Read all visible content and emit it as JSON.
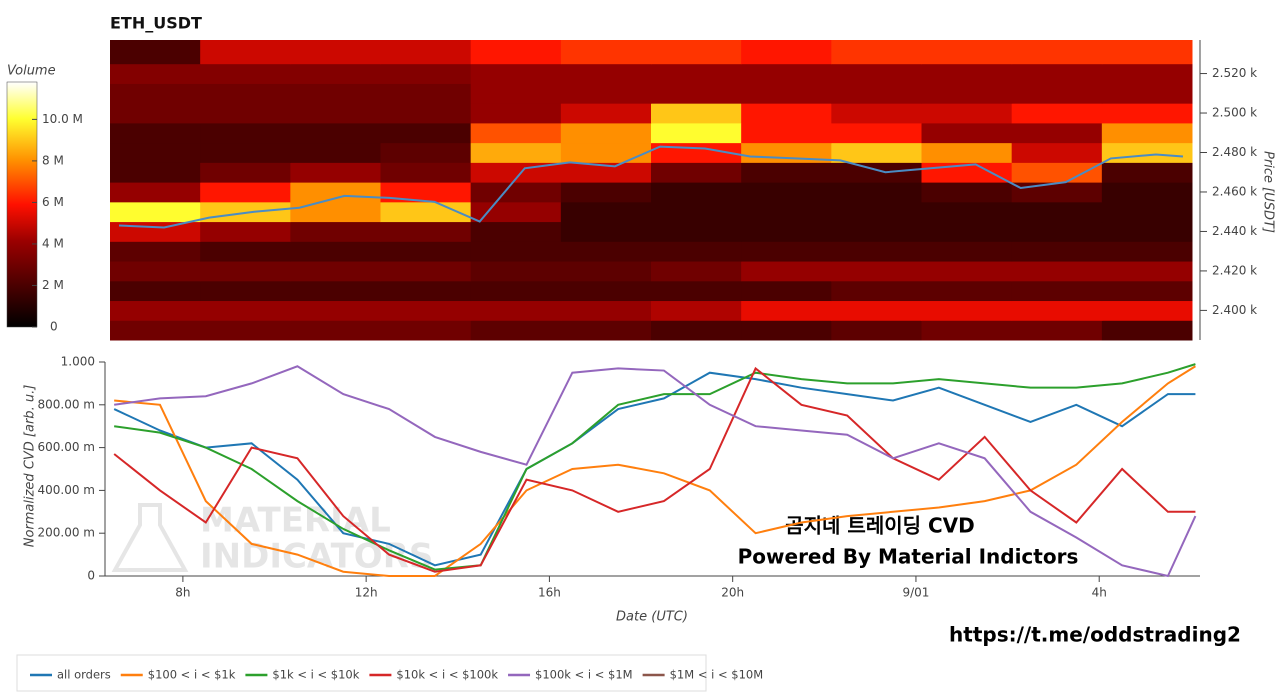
{
  "chart_data": [
    {
      "type": "heatmap",
      "title": "ETH_USDT",
      "colorbar_title": "Volume",
      "y_label": "Price [USDT]",
      "x_edges": [
        6.3,
        8.3,
        10.3,
        12.3,
        14.3,
        16.3,
        18.3,
        20.3,
        22.3,
        24.3,
        26.3,
        28.3,
        30.3
      ],
      "y_edges": [
        2385,
        2395,
        2405,
        2415,
        2425,
        2435,
        2445,
        2455,
        2465,
        2475,
        2485,
        2495,
        2505,
        2515,
        2525,
        2537
      ],
      "xlim": [
        6.3,
        30.3
      ],
      "ylim": [
        2385,
        2537
      ],
      "zlim": [
        0,
        11800000
      ],
      "z": [
        [
          3000000,
          3000000,
          3000000,
          3000000,
          2500000,
          2500000,
          2000000,
          2000000,
          2500000,
          3000000,
          3000000,
          2000000
        ],
        [
          4000000,
          4000000,
          4000000,
          4000000,
          4000000,
          4000000,
          4500000,
          5500000,
          5500000,
          5500000,
          5500000,
          5500000
        ],
        [
          2000000,
          2000000,
          2000000,
          2000000,
          2000000,
          2000000,
          2000000,
          2000000,
          2500000,
          2500000,
          2500000,
          2500000
        ],
        [
          3000000,
          3000000,
          3000000,
          3000000,
          2500000,
          2500000,
          3000000,
          4000000,
          4000000,
          4000000,
          4000000,
          4000000
        ],
        [
          2500000,
          2000000,
          2000000,
          2000000,
          2000000,
          2000000,
          2000000,
          2000000,
          2000000,
          2000000,
          2000000,
          2000000
        ],
        [
          5000000,
          4000000,
          3000000,
          3000000,
          2000000,
          1500000,
          1500000,
          1500000,
          1500000,
          1500000,
          1500000,
          1500000
        ],
        [
          10000000,
          9000000,
          8000000,
          9000000,
          4000000,
          1500000,
          1500000,
          1500000,
          1500000,
          1500000,
          1500000,
          1500000
        ],
        [
          4000000,
          6000000,
          8000000,
          6000000,
          3000000,
          2000000,
          1500000,
          1500000,
          1500000,
          2000000,
          2500000,
          1500000
        ],
        [
          2000000,
          3000000,
          4000000,
          3000000,
          5000000,
          5000000,
          3000000,
          2000000,
          2000000,
          6000000,
          7000000,
          2000000
        ],
        [
          2000000,
          2000000,
          2000000,
          2500000,
          8500000,
          8000000,
          6000000,
          8000000,
          9000000,
          8000000,
          5000000,
          9000000
        ],
        [
          2000000,
          2000000,
          2000000,
          2000000,
          7000000,
          8000000,
          10000000,
          6000000,
          6000000,
          4000000,
          4000000,
          8000000
        ],
        [
          3000000,
          3000000,
          3000000,
          3000000,
          4000000,
          5000000,
          9000000,
          6000000,
          5000000,
          5000000,
          6000000,
          6000000
        ],
        [
          3000000,
          3000000,
          3000000,
          3000000,
          4000000,
          4000000,
          4000000,
          4000000,
          4000000,
          4000000,
          4000000,
          4000000
        ],
        [
          3500000,
          3500000,
          3500000,
          3500000,
          4000000,
          4000000,
          4000000,
          4000000,
          4000000,
          4000000,
          4000000,
          4000000
        ],
        [
          2000000,
          5000000,
          5000000,
          5000000,
          6000000,
          6500000,
          6500000,
          6000000,
          6500000,
          6500000,
          6500000,
          6500000
        ]
      ],
      "ztick": [
        {
          "value": 0,
          "label": "0"
        },
        {
          "value": 2000000,
          "label": "2 M"
        },
        {
          "value": 4000000,
          "label": "4 M"
        },
        {
          "value": 6000000,
          "label": "6 M"
        },
        {
          "value": 8000000,
          "label": "8 M"
        },
        {
          "value": 10000000,
          "label": "10.0 M"
        }
      ],
      "yticks": [
        {
          "value": 2400,
          "label": "2.400 k"
        },
        {
          "value": 2420,
          "label": "2.420 k"
        },
        {
          "value": 2440,
          "label": "2.440 k"
        },
        {
          "value": 2460,
          "label": "2.460 k"
        },
        {
          "value": 2480,
          "label": "2.480 k"
        },
        {
          "value": 2500,
          "label": "2.500 k"
        },
        {
          "value": 2520,
          "label": "2.520 k"
        }
      ],
      "price": {
        "color": "#4a8cc4",
        "x": [
          6.5,
          7.5,
          8.5,
          9.5,
          10.5,
          11.5,
          12.5,
          13.5,
          14.5,
          15.5,
          16.5,
          17.5,
          18.5,
          19.5,
          20.5,
          21.5,
          22.5,
          23.5,
          24.5,
          25.5,
          26.5,
          27.5,
          28.5,
          29.5,
          30.1
        ],
        "values": [
          2443,
          2442,
          2447,
          2450,
          2452,
          2458,
          2457,
          2455,
          2445,
          2472,
          2475,
          2473,
          2483,
          2482,
          2478,
          2477,
          2476,
          2470,
          2472,
          2474,
          2462,
          2465,
          2477,
          2479,
          2478
        ]
      }
    },
    {
      "type": "line",
      "y_label": "Normalized CVD [arb. u.]",
      "x_label": "Date (UTC)",
      "annotations": [
        "곰지네 트레이딩 CVD",
        "Powered By Material Indictors"
      ],
      "x": [
        6.5,
        7.5,
        8.5,
        9.5,
        10.5,
        11.5,
        12.5,
        13.5,
        14.5,
        15.5,
        16.5,
        17.5,
        18.5,
        19.5,
        20.5,
        21.5,
        22.5,
        23.5,
        24.5,
        25.5,
        26.5,
        27.5,
        28.5,
        29.5,
        30.1
      ],
      "xlim": [
        6.3,
        30.2
      ],
      "ylim": [
        0,
        1
      ],
      "xticks": [
        {
          "value": 8,
          "label": "8h"
        },
        {
          "value": 12,
          "label": "12h"
        },
        {
          "value": 16,
          "label": "16h"
        },
        {
          "value": 20,
          "label": "20h"
        },
        {
          "value": 24,
          "label": "9/01"
        },
        {
          "value": 28,
          "label": "4h"
        }
      ],
      "yticks": [
        {
          "value": 0,
          "label": "0"
        },
        {
          "value": 0.2,
          "label": "200.00 m"
        },
        {
          "value": 0.4,
          "label": "400.00 m"
        },
        {
          "value": 0.6,
          "label": "600.00 m"
        },
        {
          "value": 0.8,
          "label": "800.00 m"
        },
        {
          "value": 1,
          "label": "1.000"
        }
      ],
      "series": [
        {
          "name": "all orders",
          "color": "#1f77b4",
          "values": [
            0.78,
            0.68,
            0.6,
            0.62,
            0.45,
            0.2,
            0.15,
            0.05,
            0.1,
            0.5,
            0.62,
            0.78,
            0.83,
            0.95,
            0.92,
            0.88,
            0.85,
            0.82,
            0.88,
            0.8,
            0.72,
            0.8,
            0.7,
            0.85,
            0.85
          ]
        },
        {
          "name": "$100 < i < $1k",
          "color": "#ff7f0e",
          "values": [
            0.82,
            0.8,
            0.35,
            0.15,
            0.1,
            0.02,
            0,
            0,
            0.15,
            0.4,
            0.5,
            0.52,
            0.48,
            0.4,
            0.2,
            0.25,
            0.28,
            0.3,
            0.32,
            0.35,
            0.4,
            0.52,
            0.72,
            0.9,
            0.98
          ]
        },
        {
          "name": "$1k < i < $10k",
          "color": "#2ca02c",
          "values": [
            0.7,
            0.67,
            0.6,
            0.5,
            0.35,
            0.22,
            0.12,
            0.03,
            0.05,
            0.5,
            0.62,
            0.8,
            0.85,
            0.85,
            0.95,
            0.92,
            0.9,
            0.9,
            0.92,
            0.9,
            0.88,
            0.88,
            0.9,
            0.95,
            0.99
          ]
        },
        {
          "name": "$10k < i < $100k",
          "color": "#d62728",
          "values": [
            0.57,
            0.4,
            0.25,
            0.6,
            0.55,
            0.28,
            0.1,
            0.02,
            0.05,
            0.45,
            0.4,
            0.3,
            0.35,
            0.5,
            0.97,
            0.8,
            0.75,
            0.55,
            0.45,
            0.65,
            0.4,
            0.25,
            0.5,
            0.3,
            0.3
          ]
        },
        {
          "name": "$100k < i < $1M",
          "color": "#9467bd",
          "values": [
            0.8,
            0.83,
            0.84,
            0.9,
            0.98,
            0.85,
            0.78,
            0.65,
            0.58,
            0.52,
            0.95,
            0.97,
            0.96,
            0.8,
            0.7,
            0.68,
            0.66,
            0.55,
            0.62,
            0.55,
            0.3,
            0.18,
            0.05,
            0,
            0.28
          ]
        },
        {
          "name": "$1M < i < $10M",
          "color": "#8c564b",
          "values": [
            null,
            null,
            null,
            null,
            null,
            null,
            null,
            null,
            null,
            null,
            null,
            null,
            null,
            null,
            null,
            null,
            null,
            null,
            null,
            null,
            null,
            null,
            null,
            null,
            null
          ]
        }
      ]
    }
  ],
  "watermark": [
    "MATERIAL",
    "INDICATORS"
  ],
  "footer_link": "https://t.me/oddstrading2"
}
